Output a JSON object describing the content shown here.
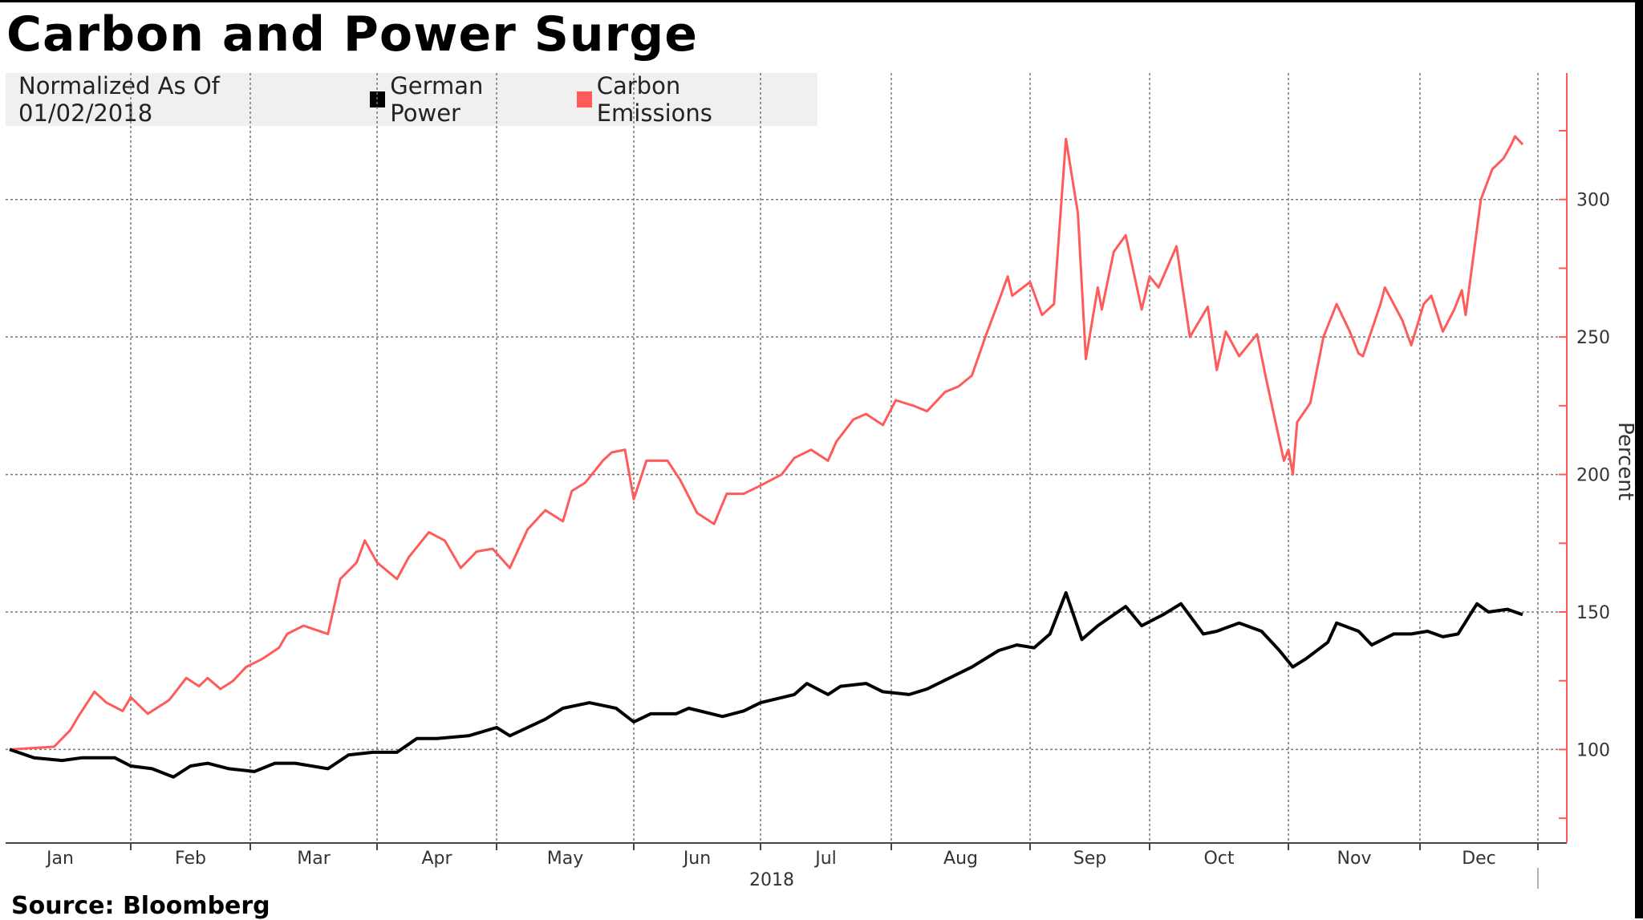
{
  "title": "Carbon and Power Surge",
  "source": "Source:  Bloomberg",
  "legend": {
    "label": "Normalized As Of 01/02/2018",
    "items": [
      {
        "name": "German Power",
        "color": "#000000"
      },
      {
        "name": "Carbon Emissions",
        "color": "#ff5b5b"
      }
    ]
  },
  "chart_data": {
    "type": "line",
    "title": "Carbon and Power Surge",
    "xlabel": "2018",
    "ylabel": "Percent",
    "x_tick_labels": [
      "Jan",
      "Feb",
      "Mar",
      "Apr",
      "May",
      "Jun",
      "Jul",
      "Aug",
      "Sep",
      "Oct",
      "Nov",
      "Dec"
    ],
    "y_ticks": [
      100,
      150,
      200,
      250,
      300
    ],
    "ylim": [
      66,
      346
    ],
    "xlim": [
      "2018-01-01",
      "2018-12-31"
    ],
    "grid": true,
    "legend_position": "top-left",
    "y_axis_side": "right",
    "series": [
      {
        "name": "German Power",
        "color": "#000000",
        "points": [
          [
            "2018-01-02",
            100
          ],
          [
            "2018-01-08",
            97
          ],
          [
            "2018-01-15",
            96
          ],
          [
            "2018-01-20",
            97
          ],
          [
            "2018-01-28",
            97
          ],
          [
            "2018-02-01",
            94
          ],
          [
            "2018-02-06",
            93
          ],
          [
            "2018-02-11",
            90
          ],
          [
            "2018-02-15",
            94
          ],
          [
            "2018-02-19",
            95
          ],
          [
            "2018-02-24",
            93
          ],
          [
            "2018-03-02",
            92
          ],
          [
            "2018-03-07",
            95
          ],
          [
            "2018-03-12",
            95
          ],
          [
            "2018-03-20",
            93
          ],
          [
            "2018-03-25",
            98
          ],
          [
            "2018-03-31",
            99
          ],
          [
            "2018-04-06",
            99
          ],
          [
            "2018-04-11",
            104
          ],
          [
            "2018-04-16",
            104
          ],
          [
            "2018-04-24",
            105
          ],
          [
            "2018-05-01",
            108
          ],
          [
            "2018-05-04",
            105
          ],
          [
            "2018-05-12",
            111
          ],
          [
            "2018-05-16",
            115
          ],
          [
            "2018-05-22",
            117
          ],
          [
            "2018-05-28",
            115
          ],
          [
            "2018-06-01",
            110
          ],
          [
            "2018-06-05",
            113
          ],
          [
            "2018-06-11",
            113
          ],
          [
            "2018-06-14",
            115
          ],
          [
            "2018-06-22",
            112
          ],
          [
            "2018-06-27",
            114
          ],
          [
            "2018-07-01",
            117
          ],
          [
            "2018-07-09",
            120
          ],
          [
            "2018-07-12",
            124
          ],
          [
            "2018-07-17",
            120
          ],
          [
            "2018-07-20",
            123
          ],
          [
            "2018-07-26",
            124
          ],
          [
            "2018-07-30",
            121
          ],
          [
            "2018-08-05",
            120
          ],
          [
            "2018-08-09",
            122
          ],
          [
            "2018-08-14",
            126
          ],
          [
            "2018-08-19",
            130
          ],
          [
            "2018-08-25",
            136
          ],
          [
            "2018-08-29",
            138
          ],
          [
            "2018-09-02",
            137
          ],
          [
            "2018-09-06",
            142
          ],
          [
            "2018-09-10",
            157
          ],
          [
            "2018-09-14",
            140
          ],
          [
            "2018-09-18",
            145
          ],
          [
            "2018-09-25",
            152
          ],
          [
            "2018-09-29",
            145
          ],
          [
            "2018-10-04",
            149
          ],
          [
            "2018-10-08",
            153
          ],
          [
            "2018-10-13",
            142
          ],
          [
            "2018-10-16",
            143
          ],
          [
            "2018-10-21",
            146
          ],
          [
            "2018-10-26",
            143
          ],
          [
            "2018-10-30",
            136
          ],
          [
            "2018-11-02",
            130
          ],
          [
            "2018-11-05",
            133
          ],
          [
            "2018-11-10",
            139
          ],
          [
            "2018-11-12",
            146
          ],
          [
            "2018-11-17",
            143
          ],
          [
            "2018-11-20",
            138
          ],
          [
            "2018-11-25",
            142
          ],
          [
            "2018-11-29",
            142
          ],
          [
            "2018-12-03",
            143
          ],
          [
            "2018-12-07",
            141
          ],
          [
            "2018-12-11",
            142
          ],
          [
            "2018-12-16",
            153
          ],
          [
            "2018-12-19",
            150
          ],
          [
            "2018-12-24",
            151
          ],
          [
            "2018-12-28",
            149
          ]
        ]
      },
      {
        "name": "Carbon Emissions",
        "color": "#ff5b5b",
        "points": [
          [
            "2018-01-02",
            100
          ],
          [
            "2018-01-13",
            101
          ],
          [
            "2018-01-17",
            107
          ],
          [
            "2018-01-19",
            112
          ],
          [
            "2018-01-23",
            121
          ],
          [
            "2018-01-26",
            117
          ],
          [
            "2018-01-30",
            114
          ],
          [
            "2018-02-01",
            119
          ],
          [
            "2018-02-05",
            113
          ],
          [
            "2018-02-10",
            118
          ],
          [
            "2018-02-14",
            126
          ],
          [
            "2018-02-17",
            123
          ],
          [
            "2018-02-19",
            126
          ],
          [
            "2018-02-22",
            122
          ],
          [
            "2018-02-25",
            125
          ],
          [
            "2018-02-28",
            130
          ],
          [
            "2018-03-04",
            133
          ],
          [
            "2018-03-08",
            137
          ],
          [
            "2018-03-10",
            142
          ],
          [
            "2018-03-14",
            145
          ],
          [
            "2018-03-20",
            142
          ],
          [
            "2018-03-23",
            162
          ],
          [
            "2018-03-27",
            168
          ],
          [
            "2018-03-29",
            176
          ],
          [
            "2018-04-01",
            168
          ],
          [
            "2018-04-06",
            162
          ],
          [
            "2018-04-09",
            170
          ],
          [
            "2018-04-14",
            179
          ],
          [
            "2018-04-18",
            176
          ],
          [
            "2018-04-22",
            166
          ],
          [
            "2018-04-26",
            172
          ],
          [
            "2018-04-30",
            173
          ],
          [
            "2018-05-04",
            166
          ],
          [
            "2018-05-08",
            180
          ],
          [
            "2018-05-12",
            187
          ],
          [
            "2018-05-16",
            183
          ],
          [
            "2018-05-18",
            194
          ],
          [
            "2018-05-21",
            197
          ],
          [
            "2018-05-25",
            205
          ],
          [
            "2018-05-27",
            208
          ],
          [
            "2018-05-30",
            209
          ],
          [
            "2018-06-01",
            191
          ],
          [
            "2018-06-04",
            205
          ],
          [
            "2018-06-09",
            205
          ],
          [
            "2018-06-12",
            198
          ],
          [
            "2018-06-16",
            186
          ],
          [
            "2018-06-20",
            182
          ],
          [
            "2018-06-23",
            193
          ],
          [
            "2018-06-27",
            193
          ],
          [
            "2018-07-01",
            196
          ],
          [
            "2018-07-06",
            200
          ],
          [
            "2018-07-09",
            206
          ],
          [
            "2018-07-13",
            209
          ],
          [
            "2018-07-17",
            205
          ],
          [
            "2018-07-19",
            212
          ],
          [
            "2018-07-23",
            220
          ],
          [
            "2018-07-26",
            222
          ],
          [
            "2018-07-30",
            218
          ],
          [
            "2018-08-02",
            227
          ],
          [
            "2018-08-06",
            225
          ],
          [
            "2018-08-09",
            223
          ],
          [
            "2018-08-13",
            230
          ],
          [
            "2018-08-16",
            232
          ],
          [
            "2018-08-19",
            236
          ],
          [
            "2018-08-22",
            250
          ],
          [
            "2018-08-25",
            263
          ],
          [
            "2018-08-27",
            272
          ],
          [
            "2018-08-28",
            265
          ],
          [
            "2018-09-01",
            270
          ],
          [
            "2018-09-04",
            258
          ],
          [
            "2018-09-07",
            262
          ],
          [
            "2018-09-10",
            322
          ],
          [
            "2018-09-13",
            295
          ],
          [
            "2018-09-15",
            242
          ],
          [
            "2018-09-18",
            268
          ],
          [
            "2018-09-19",
            260
          ],
          [
            "2018-09-22",
            281
          ],
          [
            "2018-09-25",
            287
          ],
          [
            "2018-09-29",
            260
          ],
          [
            "2018-10-01",
            272
          ],
          [
            "2018-10-03",
            268
          ],
          [
            "2018-10-07",
            283
          ],
          [
            "2018-10-10",
            250
          ],
          [
            "2018-10-14",
            261
          ],
          [
            "2018-10-16",
            238
          ],
          [
            "2018-10-18",
            252
          ],
          [
            "2018-10-21",
            243
          ],
          [
            "2018-10-25",
            251
          ],
          [
            "2018-10-27",
            235
          ],
          [
            "2018-10-31",
            205
          ],
          [
            "2018-11-01",
            209
          ],
          [
            "2018-11-02",
            200
          ],
          [
            "2018-11-03",
            219
          ],
          [
            "2018-11-06",
            226
          ],
          [
            "2018-11-09",
            250
          ],
          [
            "2018-11-12",
            262
          ],
          [
            "2018-11-15",
            252
          ],
          [
            "2018-11-17",
            244
          ],
          [
            "2018-11-18",
            243
          ],
          [
            "2018-11-22",
            262
          ],
          [
            "2018-11-23",
            268
          ],
          [
            "2018-11-27",
            256
          ],
          [
            "2018-11-29",
            247
          ],
          [
            "2018-12-02",
            262
          ],
          [
            "2018-12-04",
            265
          ],
          [
            "2018-12-07",
            252
          ],
          [
            "2018-12-10",
            260
          ],
          [
            "2018-12-12",
            267
          ],
          [
            "2018-12-13",
            258
          ],
          [
            "2018-12-17",
            300
          ],
          [
            "2018-12-20",
            311
          ],
          [
            "2018-12-23",
            315
          ],
          [
            "2018-12-25",
            320
          ],
          [
            "2018-12-26",
            323
          ],
          [
            "2018-12-28",
            320
          ]
        ]
      }
    ]
  }
}
